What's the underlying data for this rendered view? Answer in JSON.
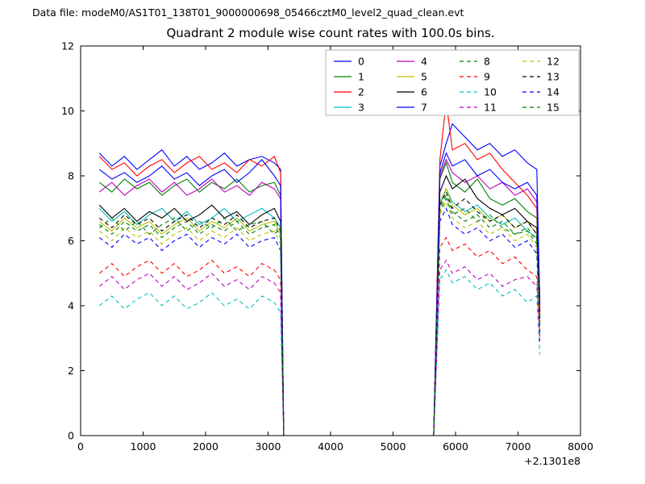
{
  "header": {
    "text": "Data file: modeM0/AS1T01_138T01_9000000698_05466cztM0_level2_quad_clean.evt"
  },
  "chart_data": {
    "type": "line",
    "title": "Quadrant 2 module wise count rates with 100.0s bins.",
    "xlabel": "",
    "ylabel": "",
    "xlim": [
      0,
      8000
    ],
    "ylim": [
      0,
      12
    ],
    "xticks": [
      0,
      1000,
      2000,
      3000,
      4000,
      5000,
      6000,
      7000,
      8000
    ],
    "yticks": [
      0,
      2,
      4,
      6,
      8,
      10,
      12
    ],
    "x_offset_label": "+2.1301e8",
    "grid": false,
    "legend": {
      "position": "upper right",
      "columns": 4
    },
    "x": [
      300,
      500,
      700,
      900,
      1100,
      1300,
      1500,
      1700,
      1900,
      2100,
      2300,
      2500,
      2700,
      2900,
      3100,
      3200,
      3250,
      5650,
      5750,
      5850,
      5950,
      6150,
      6350,
      6550,
      6750,
      6950,
      7150,
      7300,
      7350
    ],
    "series": [
      {
        "name": "0",
        "color": "#0000ff",
        "dash": false,
        "values": [
          8.7,
          8.3,
          8.6,
          8.2,
          8.5,
          8.8,
          8.3,
          8.6,
          8.2,
          8.4,
          8.7,
          8.3,
          8.5,
          8.6,
          8.4,
          8.2,
          0,
          0,
          8.3,
          9.0,
          9.6,
          9.2,
          8.8,
          9.0,
          8.6,
          8.8,
          8.4,
          8.2,
          4.0
        ]
      },
      {
        "name": "1",
        "color": "#008000",
        "dash": false,
        "values": [
          7.8,
          7.5,
          7.9,
          7.6,
          7.8,
          7.4,
          7.7,
          7.9,
          7.5,
          7.8,
          7.6,
          7.9,
          7.5,
          7.7,
          7.8,
          7.4,
          0,
          0,
          7.9,
          8.4,
          7.8,
          7.5,
          7.9,
          7.3,
          7.1,
          7.3,
          6.9,
          6.7,
          3.8
        ]
      },
      {
        "name": "2",
        "color": "#ff0000",
        "dash": false,
        "values": [
          8.6,
          8.2,
          8.4,
          8.0,
          8.3,
          8.5,
          8.1,
          8.4,
          8.6,
          8.2,
          8.4,
          8.1,
          8.5,
          8.3,
          8.6,
          8.1,
          0,
          0,
          8.5,
          10.3,
          8.8,
          9.0,
          8.5,
          8.7,
          8.2,
          7.8,
          7.4,
          7.0,
          3.9
        ]
      },
      {
        "name": "3",
        "color": "#00bfbf",
        "dash": false,
        "values": [
          7.0,
          6.6,
          6.9,
          6.5,
          6.8,
          7.0,
          6.6,
          6.9,
          6.5,
          6.7,
          7.0,
          6.6,
          6.8,
          7.0,
          6.7,
          6.4,
          0,
          0,
          7.1,
          7.6,
          7.2,
          6.9,
          7.1,
          6.7,
          6.5,
          6.7,
          6.3,
          6.1,
          3.4
        ]
      },
      {
        "name": "4",
        "color": "#bf00bf",
        "dash": false,
        "values": [
          7.5,
          7.8,
          7.4,
          7.7,
          7.9,
          7.5,
          7.8,
          7.4,
          7.6,
          7.9,
          7.5,
          7.7,
          7.4,
          7.8,
          7.6,
          7.3,
          0,
          0,
          8.0,
          8.5,
          8.1,
          7.8,
          8.0,
          7.6,
          7.8,
          7.4,
          7.6,
          7.2,
          4.2
        ]
      },
      {
        "name": "5",
        "color": "#bfbf00",
        "dash": false,
        "values": [
          6.6,
          6.3,
          6.7,
          6.4,
          6.6,
          6.2,
          6.5,
          6.7,
          6.3,
          6.6,
          6.4,
          6.7,
          6.3,
          6.5,
          6.6,
          6.2,
          0,
          0,
          7.2,
          7.6,
          7.1,
          6.8,
          7.0,
          6.6,
          6.8,
          6.4,
          6.6,
          6.2,
          3.6
        ]
      },
      {
        "name": "6",
        "color": "#000000",
        "dash": false,
        "values": [
          7.1,
          6.7,
          7.0,
          6.6,
          6.9,
          6.7,
          7.0,
          6.6,
          6.8,
          7.1,
          6.7,
          6.9,
          6.5,
          6.8,
          7.0,
          6.6,
          0,
          0,
          7.5,
          8.0,
          7.6,
          7.9,
          7.3,
          7.0,
          6.8,
          7.0,
          6.6,
          6.4,
          3.7
        ]
      },
      {
        "name": "7",
        "color": "#0000ff",
        "dash": false,
        "values": [
          8.2,
          7.9,
          8.1,
          7.8,
          8.0,
          8.3,
          7.9,
          8.1,
          7.7,
          8.0,
          8.2,
          7.8,
          8.1,
          8.5,
          8.0,
          7.7,
          0,
          0,
          8.1,
          8.7,
          8.3,
          8.5,
          8.0,
          8.2,
          7.8,
          7.6,
          7.8,
          7.4,
          4.1
        ]
      },
      {
        "name": "8",
        "color": "#008000",
        "dash": true,
        "values": [
          6.5,
          6.2,
          6.6,
          6.3,
          6.5,
          6.1,
          6.4,
          6.6,
          6.2,
          6.5,
          6.3,
          6.6,
          6.2,
          6.4,
          6.5,
          6.1,
          0,
          0,
          7.0,
          7.4,
          6.9,
          6.6,
          6.8,
          6.4,
          6.6,
          6.2,
          6.4,
          6.0,
          3.5
        ]
      },
      {
        "name": "9",
        "color": "#ff0000",
        "dash": true,
        "values": [
          5.0,
          5.3,
          4.9,
          5.2,
          5.4,
          5.0,
          5.3,
          4.9,
          5.1,
          5.4,
          5.0,
          5.2,
          4.9,
          5.3,
          5.1,
          4.8,
          0,
          0,
          5.8,
          6.1,
          5.7,
          5.9,
          5.5,
          5.7,
          5.3,
          5.5,
          5.1,
          4.9,
          3.0
        ]
      },
      {
        "name": "10",
        "color": "#00bfbf",
        "dash": true,
        "values": [
          4.0,
          4.3,
          3.9,
          4.2,
          4.4,
          4.0,
          4.3,
          3.9,
          4.1,
          4.4,
          4.0,
          4.2,
          3.9,
          4.3,
          4.1,
          3.8,
          0,
          0,
          4.8,
          5.1,
          4.7,
          4.9,
          4.5,
          4.7,
          4.3,
          4.5,
          4.1,
          4.3,
          2.5
        ]
      },
      {
        "name": "11",
        "color": "#bf00bf",
        "dash": true,
        "values": [
          4.6,
          4.9,
          4.5,
          4.8,
          5.0,
          4.6,
          4.9,
          4.5,
          4.7,
          5.0,
          4.6,
          4.8,
          4.5,
          4.9,
          4.7,
          4.4,
          0,
          0,
          5.1,
          5.4,
          5.0,
          5.2,
          4.8,
          5.0,
          4.6,
          4.8,
          4.9,
          4.6,
          2.9
        ]
      },
      {
        "name": "12",
        "color": "#bfbf00",
        "dash": true,
        "values": [
          6.3,
          6.0,
          6.4,
          6.1,
          6.3,
          5.9,
          6.2,
          6.4,
          6.0,
          6.3,
          6.1,
          6.4,
          6.0,
          6.2,
          6.3,
          5.9,
          0,
          0,
          6.8,
          7.2,
          6.7,
          6.4,
          6.6,
          6.2,
          6.4,
          6.0,
          6.2,
          5.8,
          3.3
        ]
      },
      {
        "name": "13",
        "color": "#000000",
        "dash": true,
        "values": [
          6.7,
          6.4,
          6.8,
          6.5,
          6.7,
          6.3,
          6.6,
          6.8,
          6.4,
          6.7,
          6.5,
          6.8,
          6.4,
          6.6,
          6.7,
          6.3,
          0,
          0,
          7.1,
          7.5,
          7.0,
          7.3,
          6.9,
          6.6,
          6.8,
          6.4,
          6.6,
          6.2,
          3.6
        ]
      },
      {
        "name": "14",
        "color": "#0000ff",
        "dash": true,
        "values": [
          6.1,
          5.8,
          6.2,
          5.9,
          6.1,
          5.7,
          6.0,
          6.2,
          5.8,
          6.1,
          5.9,
          6.2,
          5.8,
          6.0,
          6.1,
          5.7,
          0,
          0,
          6.6,
          7.0,
          6.5,
          6.2,
          6.4,
          6.0,
          6.2,
          5.8,
          6.0,
          5.6,
          3.2
        ]
      },
      {
        "name": "15",
        "color": "#008000",
        "dash": true,
        "values": [
          6.4,
          6.7,
          6.3,
          6.6,
          6.2,
          6.5,
          6.7,
          6.3,
          6.6,
          6.4,
          6.7,
          6.3,
          6.5,
          6.6,
          6.2,
          6.4,
          0,
          0,
          6.9,
          7.3,
          6.8,
          7.0,
          6.6,
          6.8,
          6.4,
          6.2,
          6.3,
          5.9,
          3.4
        ]
      }
    ]
  }
}
